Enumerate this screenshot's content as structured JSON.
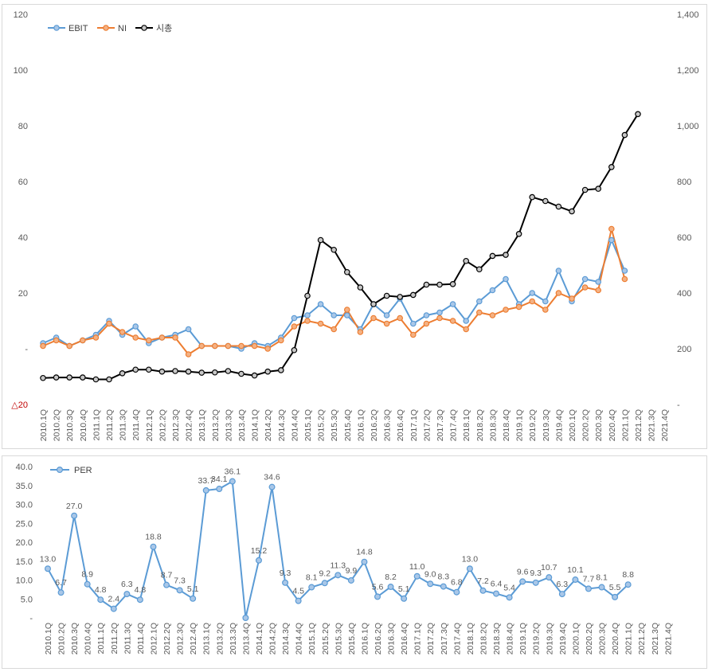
{
  "chart_data": [
    {
      "type": "line",
      "categories": [
        "2010.1Q",
        "2010.2Q",
        "2010.3Q",
        "2010.4Q",
        "2011.1Q",
        "2011.2Q",
        "2011.3Q",
        "2011.4Q",
        "2012.1Q",
        "2012.2Q",
        "2012.3Q",
        "2012.4Q",
        "2013.1Q",
        "2013.2Q",
        "2013.3Q",
        "2013.4Q",
        "2014.1Q",
        "2014.2Q",
        "2014.3Q",
        "2014.4Q",
        "2015.1Q",
        "2015.2Q",
        "2015.3Q",
        "2015.4Q",
        "2016.1Q",
        "2016.2Q",
        "2016.3Q",
        "2016.4Q",
        "2017.1Q",
        "2017.2Q",
        "2017.3Q",
        "2017.4Q",
        "2018.1Q",
        "2018.2Q",
        "2018.3Q",
        "2018.4Q",
        "2019.1Q",
        "2019.2Q",
        "2019.3Q",
        "2019.4Q",
        "2020.1Q",
        "2020.2Q",
        "2020.3Q",
        "2020.4Q",
        "2021.1Q",
        "2021.2Q",
        "2021.3Q",
        "2021.4Q"
      ],
      "series": [
        {
          "name": "EBIT",
          "axis": "left",
          "color": "#5b9bd5",
          "values": [
            2,
            4,
            1,
            3,
            5,
            10,
            5,
            8,
            2,
            4,
            5,
            7,
            1,
            1,
            1,
            0,
            2,
            1,
            4,
            11,
            12,
            16,
            12,
            12,
            7,
            16,
            12,
            18,
            9,
            12,
            13,
            16,
            10,
            17,
            21,
            25,
            16,
            20,
            17,
            28,
            17,
            25,
            24,
            39,
            28,
            null,
            null,
            null
          ]
        },
        {
          "name": "NI",
          "axis": "left",
          "color": "#ed7d31",
          "values": [
            1,
            3,
            1,
            3,
            4,
            9,
            6,
            4,
            3,
            4,
            4,
            -2,
            1,
            1,
            1,
            1,
            1,
            0,
            3,
            8,
            10,
            9,
            7,
            14,
            6,
            11,
            9,
            11,
            5,
            9,
            11,
            10,
            7,
            13,
            12,
            14,
            15,
            17,
            14,
            20,
            18,
            22,
            21,
            43,
            25,
            null,
            null,
            null
          ]
        },
        {
          "name": "시총",
          "axis": "right",
          "color": "#000000",
          "values": [
            95,
            97,
            97,
            97,
            90,
            90,
            112,
            125,
            125,
            118,
            120,
            118,
            114,
            115,
            120,
            110,
            104,
            118,
            123,
            195,
            390,
            590,
            555,
            475,
            420,
            360,
            390,
            386,
            393,
            430,
            430,
            432,
            515,
            485,
            533,
            537,
            612,
            744,
            730,
            710,
            693,
            770,
            774,
            852,
            967,
            1042,
            null,
            null
          ]
        }
      ],
      "left_axis": {
        "min": -20,
        "max": 120,
        "step": 20,
        "tick_labels": [
          "△20",
          "-",
          "20",
          "40",
          "60",
          "80",
          "100",
          "120"
        ]
      },
      "right_axis": {
        "min": 0,
        "max": 1400,
        "step": 200,
        "tick_labels": [
          "-",
          "200",
          "400",
          "600",
          "800",
          "1,000",
          "1,200",
          "1,400"
        ]
      },
      "legend": [
        "EBIT",
        "NI",
        "시총"
      ],
      "legend_position": "top-left"
    },
    {
      "type": "line",
      "categories": [
        "2010.1Q",
        "2010.2Q",
        "2010.3Q",
        "2010.4Q",
        "2011.1Q",
        "2011.2Q",
        "2011.3Q",
        "2011.4Q",
        "2012.1Q",
        "2012.2Q",
        "2012.3Q",
        "2012.4Q",
        "2013.1Q",
        "2013.2Q",
        "2013.3Q",
        "2013.4Q",
        "2014.1Q",
        "2014.2Q",
        "2014.3Q",
        "2014.4Q",
        "2015.1Q",
        "2015.2Q",
        "2015.3Q",
        "2015.4Q",
        "2016.1Q",
        "2016.2Q",
        "2016.3Q",
        "2016.4Q",
        "2017.1Q",
        "2017.2Q",
        "2017.3Q",
        "2017.4Q",
        "2018.1Q",
        "2018.2Q",
        "2018.3Q",
        "2018.4Q",
        "2019.1Q",
        "2019.2Q",
        "2019.3Q",
        "2019.4Q",
        "2020.1Q",
        "2020.2Q",
        "2020.3Q",
        "2020.4Q",
        "2021.1Q",
        "2021.2Q",
        "2021.3Q",
        "2021.4Q"
      ],
      "series": [
        {
          "name": "PER",
          "color": "#5b9bd5",
          "values": [
            13.0,
            6.7,
            27.0,
            8.9,
            4.8,
            2.4,
            6.3,
            4.8,
            18.8,
            8.7,
            7.3,
            5.1,
            33.7,
            34.1,
            36.1,
            0,
            15.2,
            34.6,
            9.3,
            4.5,
            8.1,
            9.2,
            11.3,
            9.9,
            14.8,
            5.6,
            8.2,
            5.1,
            11.0,
            9.0,
            8.3,
            6.8,
            13.0,
            7.2,
            6.4,
            5.4,
            9.6,
            9.3,
            10.7,
            6.3,
            10.1,
            7.7,
            8.1,
            5.5,
            8.8,
            null,
            null,
            null
          ],
          "labels": [
            "13.0",
            "6.7",
            "27.0",
            "8.9",
            "4.8",
            "2.4",
            "6.3",
            "4.8",
            "18.8",
            "8.7",
            "7.3",
            "5.1",
            "33.7",
            "34.1",
            "36.1",
            "",
            "15.2",
            "34.6",
            "9.3",
            "4.5",
            "8.1",
            "9.2",
            "11.3",
            "9.9",
            "14.8",
            "5.6",
            "8.2",
            "5.1",
            "11.0",
            "9.0",
            "8.3",
            "6.8",
            "13.0",
            "7.2",
            "6.4",
            "5.4",
            "9.6",
            "9.3",
            "10.7",
            "6.3",
            "10.1",
            "7.7",
            "8.1",
            "5.5",
            "8.8",
            "",
            "",
            ""
          ]
        }
      ],
      "y_axis": {
        "min": 0,
        "max": 40,
        "step": 5,
        "tick_labels": [
          "-",
          "5.0",
          "10.0",
          "15.0",
          "20.0",
          "25.0",
          "30.0",
          "35.0",
          "40.0"
        ]
      },
      "legend": [
        "PER"
      ],
      "legend_position": "top-left"
    }
  ]
}
